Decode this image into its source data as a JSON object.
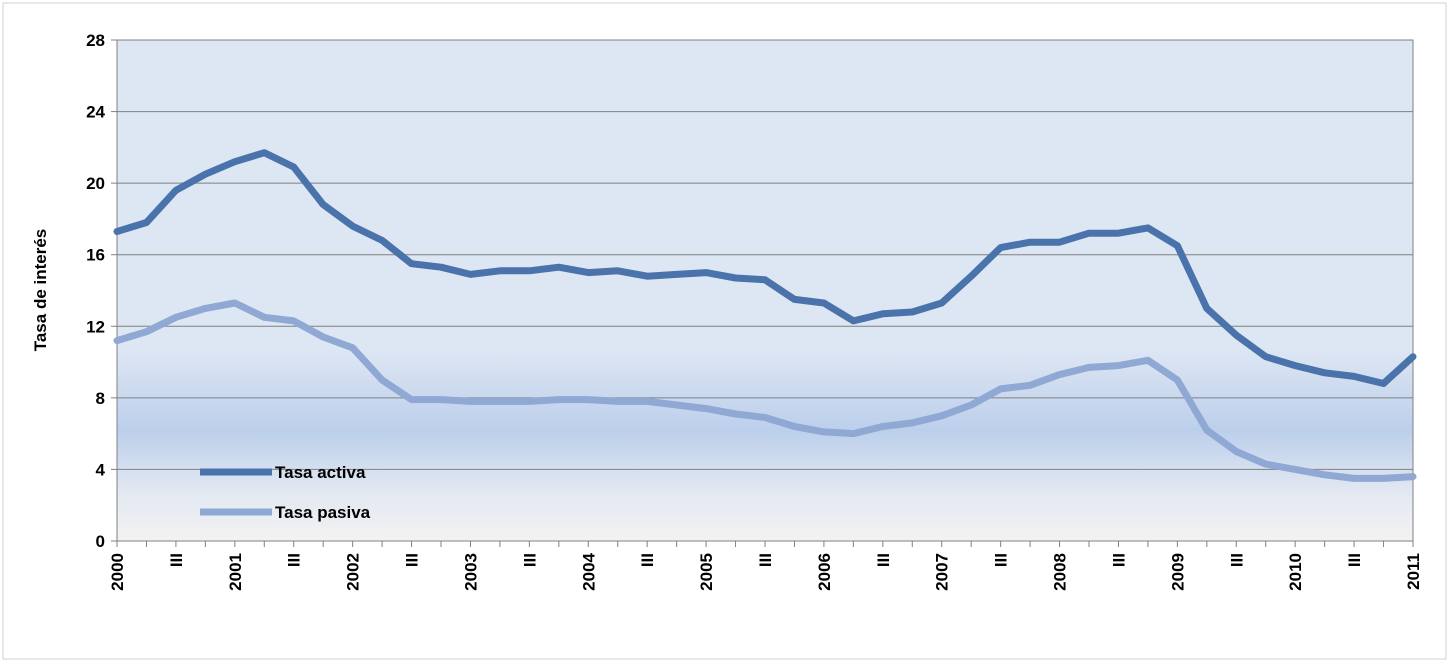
{
  "chart_data": {
    "type": "line",
    "y_label": "Tasa de interés",
    "categories": [
      "2000",
      null,
      "III",
      null,
      "2001",
      null,
      "III",
      null,
      "2002",
      null,
      "III",
      null,
      "2003",
      null,
      "III",
      null,
      "2004",
      null,
      "III",
      null,
      "2005",
      null,
      "III",
      null,
      "2006",
      null,
      "III",
      null,
      "2007",
      null,
      "III",
      null,
      "2008",
      null,
      "III",
      null,
      "2009",
      null,
      "III",
      null,
      "2010",
      null,
      "III",
      null,
      "2011"
    ],
    "series": [
      {
        "name": "Tasa activa",
        "color": "#4a72ab",
        "values": [
          17.3,
          17.8,
          19.6,
          20.5,
          21.2,
          21.7,
          20.9,
          18.8,
          17.6,
          16.8,
          15.5,
          15.3,
          14.9,
          15.1,
          15.1,
          15.3,
          15.0,
          15.1,
          14.8,
          14.9,
          15.0,
          14.7,
          14.6,
          13.5,
          13.3,
          12.3,
          12.7,
          12.8,
          13.3,
          14.8,
          16.4,
          16.7,
          16.7,
          17.2,
          17.2,
          17.5,
          16.5,
          13.0,
          11.5,
          10.3,
          9.8,
          9.4,
          9.2,
          8.8,
          10.3
        ]
      },
      {
        "name": "Tasa pasiva",
        "color": "#8fa8d4",
        "values": [
          11.2,
          11.7,
          12.5,
          13.0,
          13.3,
          12.5,
          12.3,
          11.4,
          10.8,
          9.0,
          7.9,
          7.9,
          7.8,
          7.8,
          7.8,
          7.9,
          7.9,
          7.8,
          7.8,
          7.6,
          7.4,
          7.1,
          6.9,
          6.4,
          6.1,
          6.0,
          6.4,
          6.6,
          7.0,
          7.6,
          8.5,
          8.7,
          9.3,
          9.7,
          9.8,
          10.1,
          9.0,
          6.2,
          5.0,
          4.3,
          4.0,
          3.7,
          3.5,
          3.5,
          3.6
        ]
      }
    ],
    "ylim": [
      0,
      28
    ],
    "yticks": [
      0,
      4,
      8,
      12,
      16,
      20,
      24,
      28
    ],
    "grid": true
  }
}
